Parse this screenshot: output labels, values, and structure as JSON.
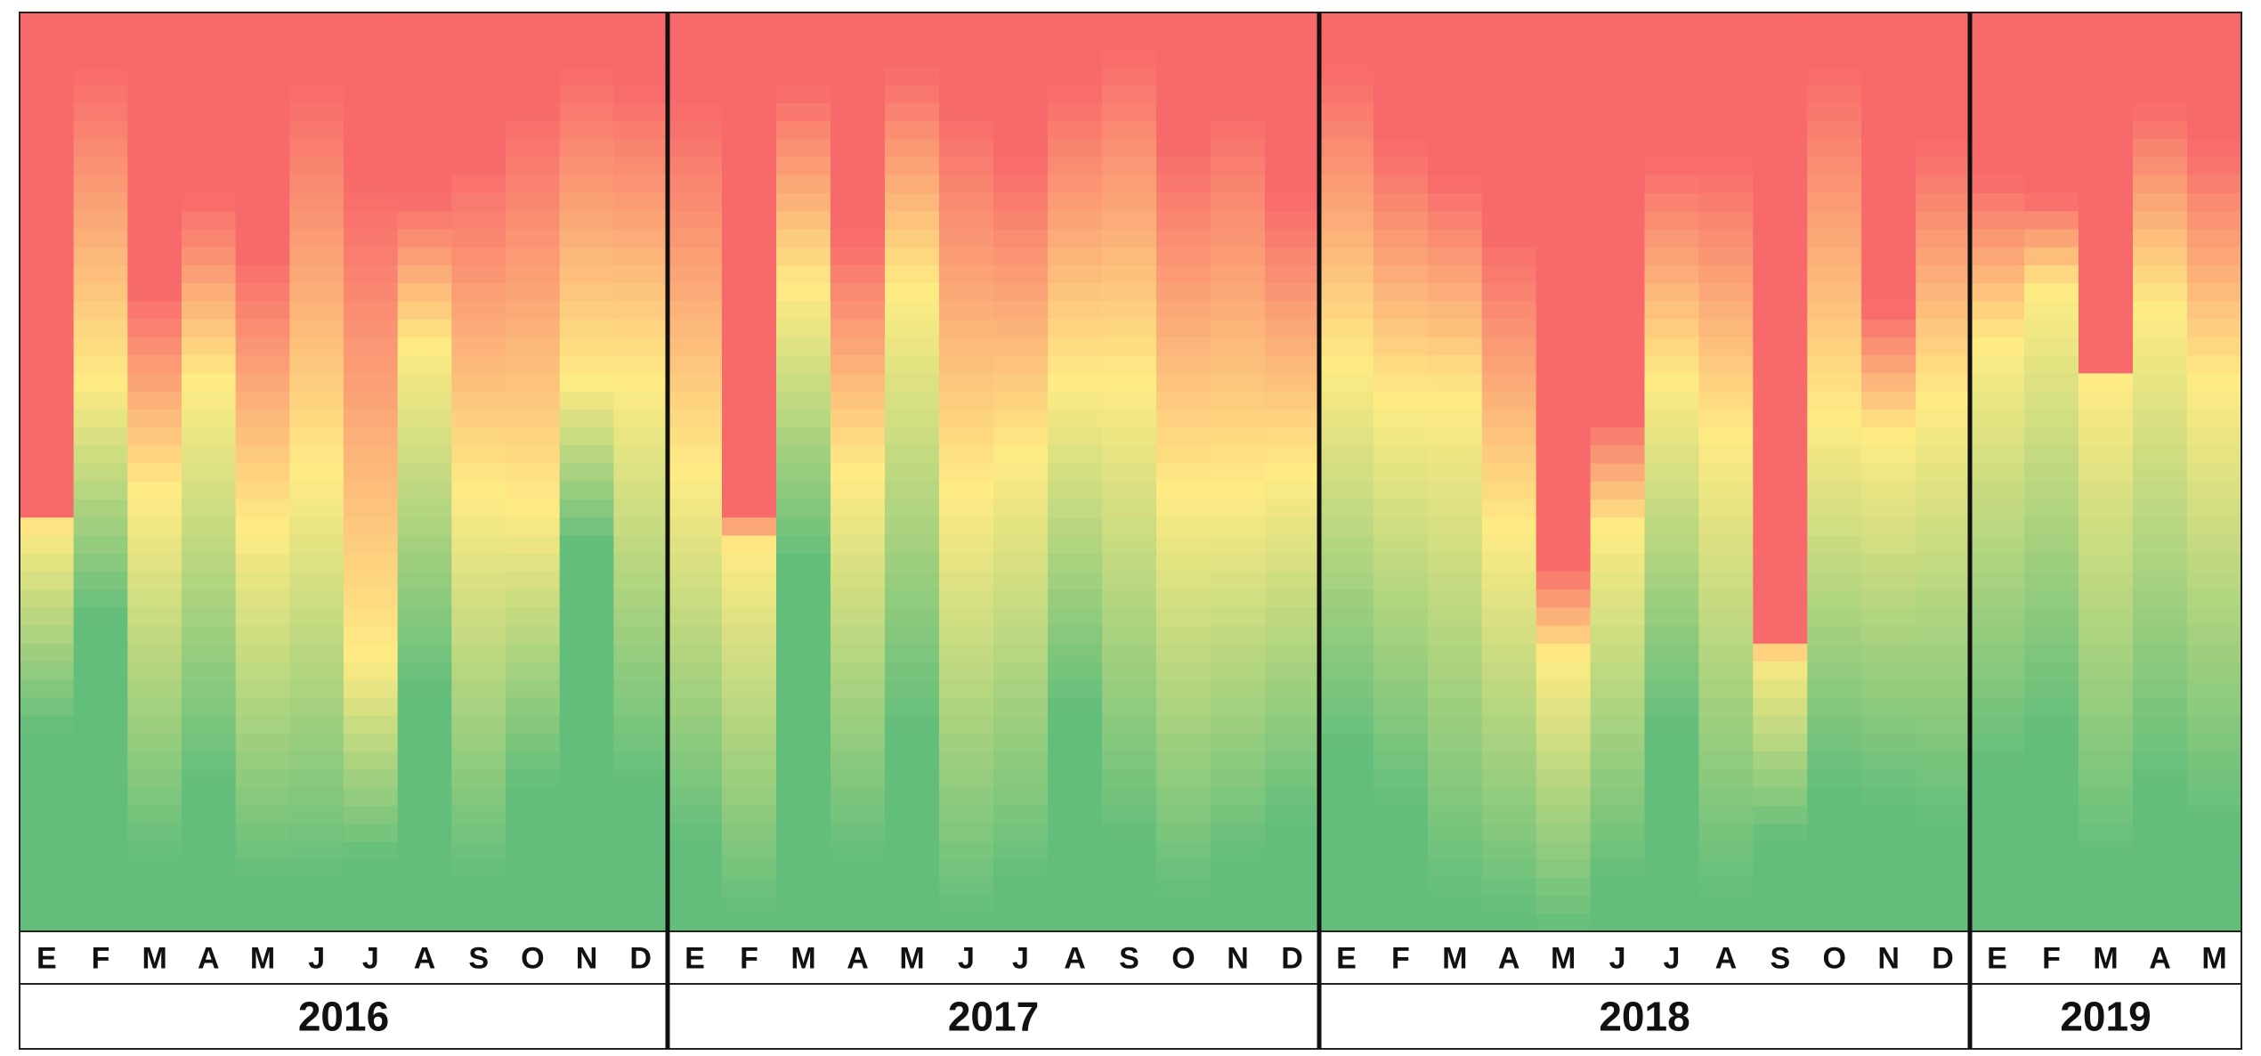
{
  "chart_data": {
    "type": "heatmap",
    "title": "",
    "xlabel": "",
    "ylabel": "",
    "scale": {
      "steps": 51,
      "colors": {
        "low": "#63BE7B",
        "mid": "#FFEB84",
        "high": "#F8696B"
      }
    },
    "groups": [
      {
        "year": "2016",
        "months": [
          "E",
          "F",
          "M",
          "A",
          "M",
          "J",
          "J",
          "A",
          "S",
          "O",
          "N",
          "D"
        ],
        "green_fraction": [
          0.22,
          0.34,
          0.08,
          0.16,
          0.06,
          0.06,
          0.08,
          0.26,
          0.06,
          0.16,
          0.42,
          0.16
        ],
        "yellow_fraction": [
          0.22,
          0.26,
          0.4,
          0.44,
          0.38,
          0.44,
          0.22,
          0.38,
          0.42,
          0.3,
          0.18,
          0.44
        ],
        "red_fraction": [
          0.54,
          0.06,
          0.3,
          0.2,
          0.26,
          0.08,
          0.18,
          0.2,
          0.16,
          0.1,
          0.06,
          0.08
        ]
      },
      {
        "year": "2017",
        "months": [
          "E",
          "F",
          "M",
          "A",
          "M",
          "J",
          "J",
          "A",
          "S",
          "O",
          "N",
          "D"
        ],
        "green_fraction": [
          0.1,
          0.02,
          0.4,
          0.08,
          0.22,
          0.02,
          0.06,
          0.24,
          0.1,
          0.04,
          0.08,
          0.12
        ],
        "yellow_fraction": [
          0.4,
          0.4,
          0.3,
          0.42,
          0.48,
          0.46,
          0.46,
          0.36,
          0.5,
          0.44,
          0.4,
          0.38
        ],
        "red_fraction": [
          0.1,
          0.54,
          0.08,
          0.24,
          0.06,
          0.1,
          0.16,
          0.08,
          0.04,
          0.14,
          0.1,
          0.2
        ]
      },
      {
        "year": "2018",
        "months": [
          "E",
          "F",
          "M",
          "A",
          "M",
          "J",
          "J",
          "A",
          "S",
          "O",
          "N",
          "D"
        ],
        "green_fraction": [
          0.2,
          0.14,
          0.04,
          0.02,
          0.0,
          0.06,
          0.22,
          0.04,
          0.1,
          0.16,
          0.14,
          0.12
        ],
        "yellow_fraction": [
          0.42,
          0.44,
          0.54,
          0.42,
          0.3,
          0.38,
          0.38,
          0.5,
          0.2,
          0.4,
          0.4,
          0.46
        ],
        "red_fraction": [
          0.06,
          0.14,
          0.18,
          0.24,
          0.6,
          0.44,
          0.16,
          0.16,
          0.68,
          0.06,
          0.32,
          0.14
        ]
      },
      {
        "year": "2019",
        "months": [
          "E",
          "F",
          "M",
          "A",
          "M"
        ],
        "green_fraction": [
          0.18,
          0.22,
          0.08,
          0.16,
          0.12
        ],
        "yellow_fraction": [
          0.46,
          0.48,
          0.52,
          0.52,
          0.48
        ],
        "red_fraction": [
          0.18,
          0.2,
          0.42,
          0.1,
          0.14
        ]
      }
    ]
  }
}
